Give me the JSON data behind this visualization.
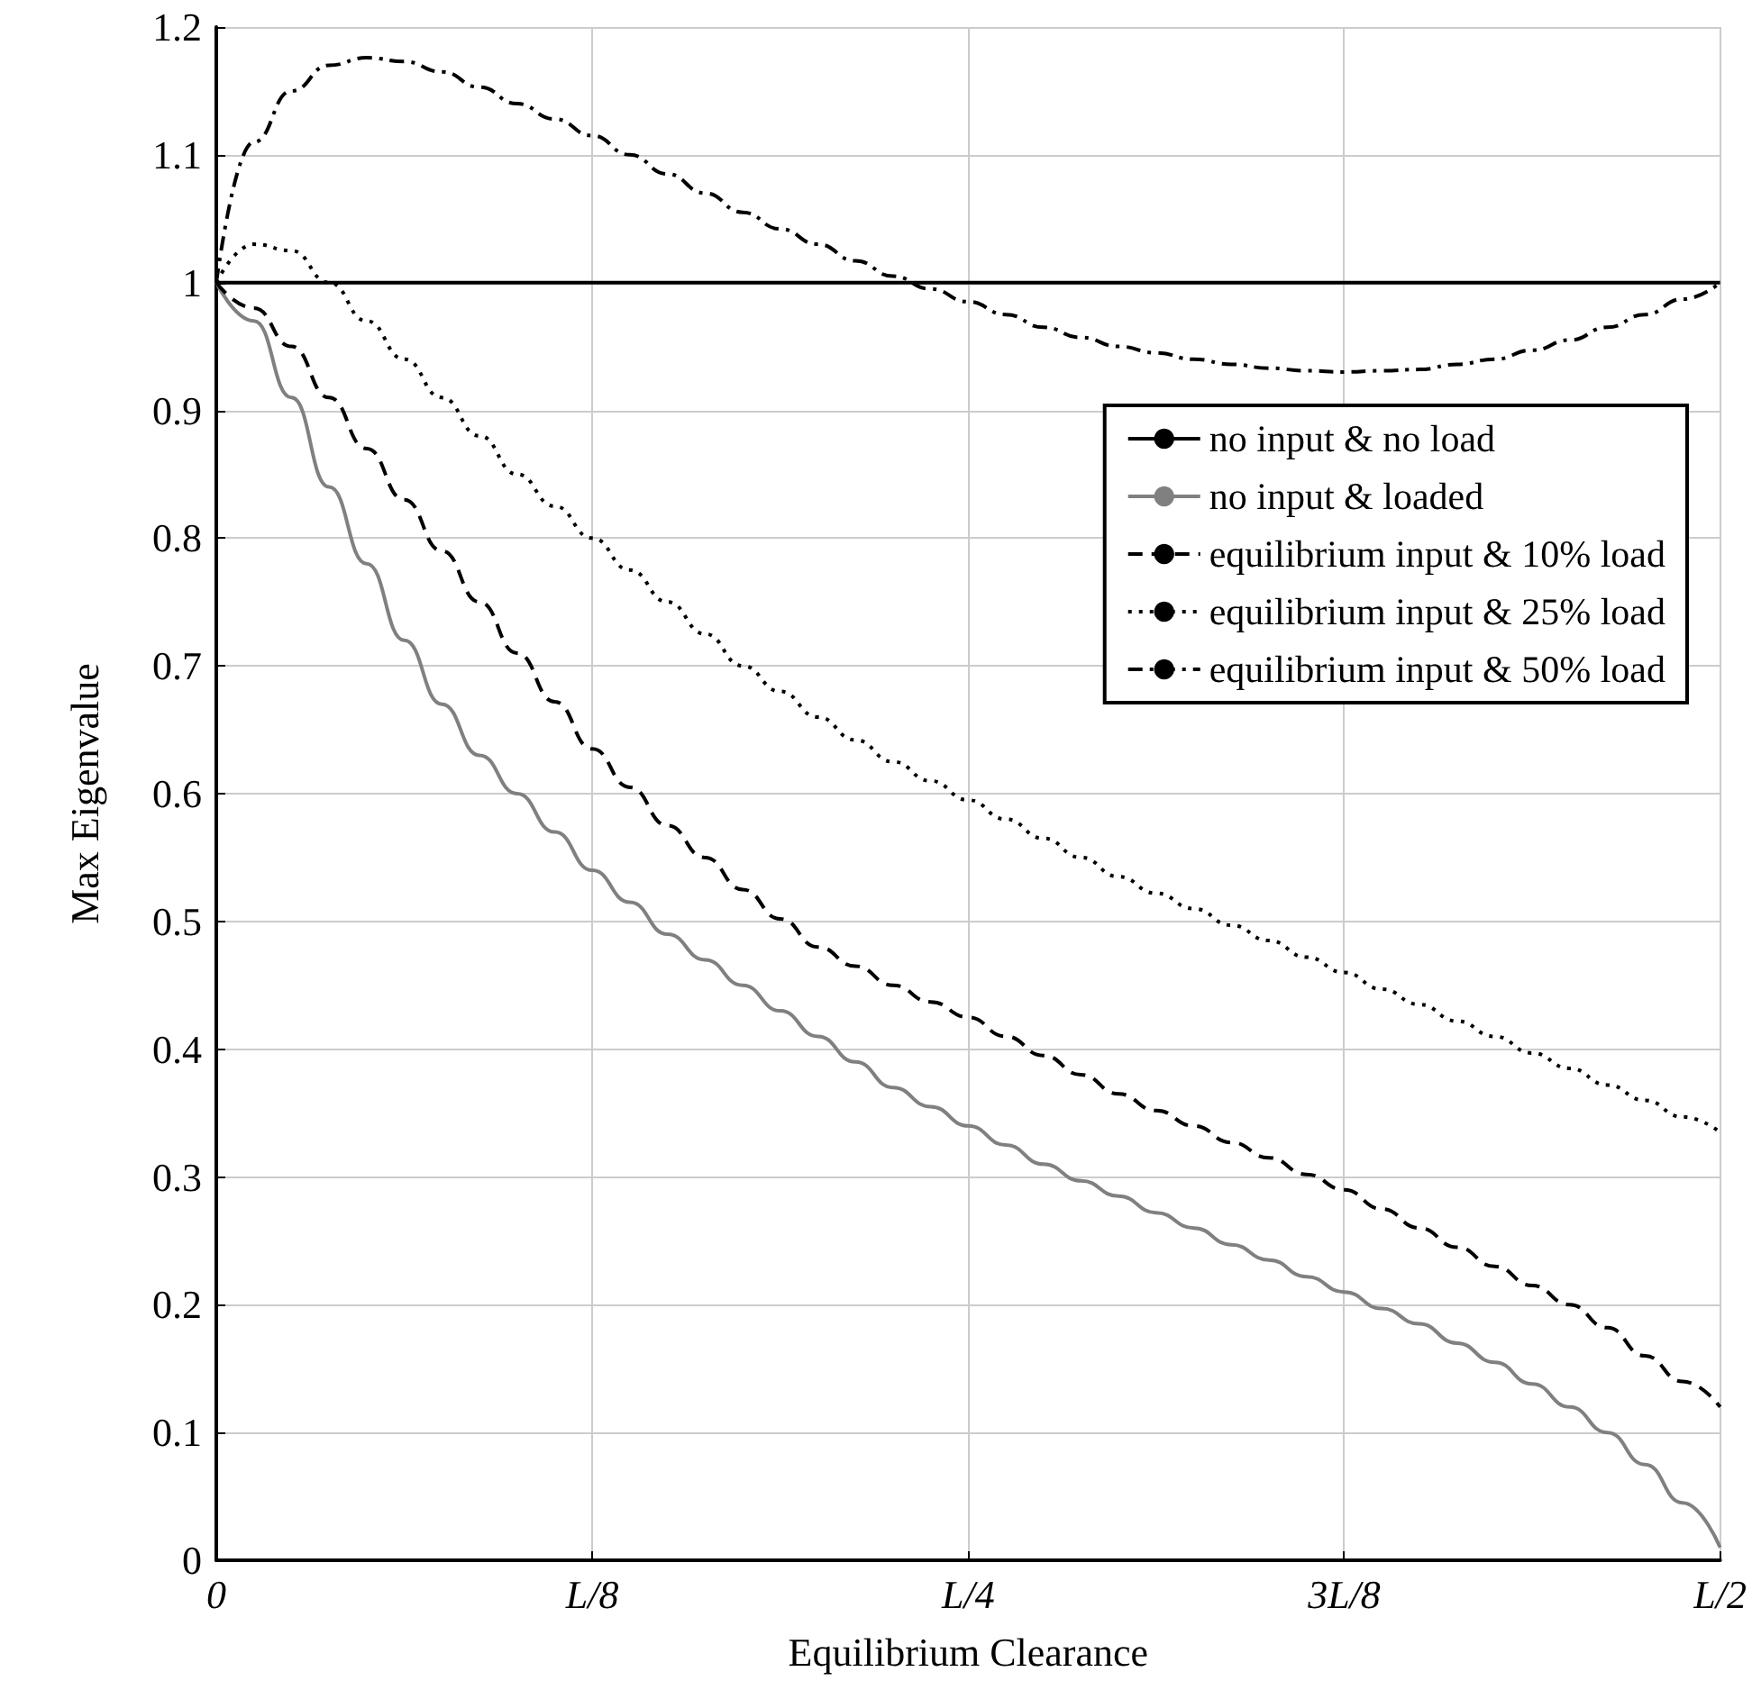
{
  "chart_data": {
    "type": "line",
    "xlabel": "Equilibrium Clearance",
    "ylabel": "Max Eigenvalue",
    "categories": [
      "0",
      null,
      null,
      null,
      null,
      null,
      null,
      null,
      null,
      null,
      "L/8",
      null,
      null,
      null,
      null,
      null,
      null,
      null,
      null,
      null,
      "L/4",
      null,
      null,
      null,
      null,
      null,
      null,
      null,
      null,
      null,
      "3L/8",
      null,
      null,
      null,
      null,
      null,
      null,
      null,
      null,
      null,
      "L/2"
    ],
    "ylim": [
      0,
      1.2
    ],
    "yticks": [
      0,
      0.1,
      0.2,
      0.3,
      0.4,
      0.5,
      0.6,
      0.7,
      0.8,
      0.9,
      1,
      1.1,
      1.2
    ],
    "grid": true,
    "legend": "right",
    "marker": "none",
    "series": [
      {
        "name": "no input & no load",
        "color": "#000000",
        "line_style": "solid",
        "values": [
          1,
          1,
          1,
          1,
          1,
          1,
          1,
          1,
          1,
          1,
          1,
          1,
          1,
          1,
          1,
          1,
          1,
          1,
          1,
          1,
          1,
          1,
          1,
          1,
          1,
          1,
          1,
          1,
          1,
          1,
          1,
          1,
          1,
          1,
          1,
          1,
          1,
          1,
          1,
          1,
          1
        ]
      },
      {
        "name": "no input & loaded",
        "color": "#808080",
        "line_style": "solid",
        "values": [
          1.0,
          0.97,
          0.91,
          0.84,
          0.78,
          0.72,
          0.67,
          0.63,
          0.6,
          0.57,
          0.54,
          0.515,
          0.49,
          0.47,
          0.45,
          0.43,
          0.41,
          0.39,
          0.37,
          0.355,
          0.34,
          0.325,
          0.31,
          0.297,
          0.285,
          0.272,
          0.26,
          0.247,
          0.235,
          0.222,
          0.21,
          0.197,
          0.185,
          0.17,
          0.155,
          0.138,
          0.12,
          0.1,
          0.075,
          0.045,
          0.01
        ]
      },
      {
        "name": "equilibrium input & 10% load",
        "color": "#000000",
        "line_style": "dashed",
        "values": [
          1.0,
          0.98,
          0.95,
          0.91,
          0.87,
          0.83,
          0.79,
          0.75,
          0.71,
          0.672,
          0.635,
          0.605,
          0.575,
          0.55,
          0.525,
          0.502,
          0.48,
          0.465,
          0.45,
          0.437,
          0.425,
          0.41,
          0.395,
          0.38,
          0.365,
          0.352,
          0.34,
          0.327,
          0.315,
          0.302,
          0.29,
          0.275,
          0.26,
          0.245,
          0.23,
          0.215,
          0.2,
          0.182,
          0.16,
          0.14,
          0.12
        ]
      },
      {
        "name": "equilibrium input & 25% load",
        "color": "#000000",
        "line_style": "dotted",
        "values": [
          1.0,
          1.03,
          1.025,
          1.0,
          0.97,
          0.94,
          0.91,
          0.88,
          0.85,
          0.825,
          0.8,
          0.775,
          0.75,
          0.725,
          0.7,
          0.68,
          0.66,
          0.642,
          0.625,
          0.61,
          0.595,
          0.58,
          0.565,
          0.55,
          0.535,
          0.522,
          0.51,
          0.497,
          0.485,
          0.472,
          0.46,
          0.447,
          0.435,
          0.422,
          0.41,
          0.397,
          0.385,
          0.372,
          0.36,
          0.347,
          0.335
        ]
      },
      {
        "name": "equilibrium input & 50% load",
        "color": "#000000",
        "line_style": "dashdot",
        "values": [
          1.0,
          1.11,
          1.15,
          1.17,
          1.176,
          1.173,
          1.165,
          1.153,
          1.14,
          1.128,
          1.115,
          1.1,
          1.085,
          1.07,
          1.055,
          1.042,
          1.03,
          1.017,
          1.005,
          0.995,
          0.985,
          0.975,
          0.965,
          0.957,
          0.95,
          0.945,
          0.94,
          0.936,
          0.933,
          0.931,
          0.93,
          0.931,
          0.932,
          0.936,
          0.94,
          0.947,
          0.955,
          0.965,
          0.975,
          0.987,
          1.0
        ]
      }
    ]
  }
}
